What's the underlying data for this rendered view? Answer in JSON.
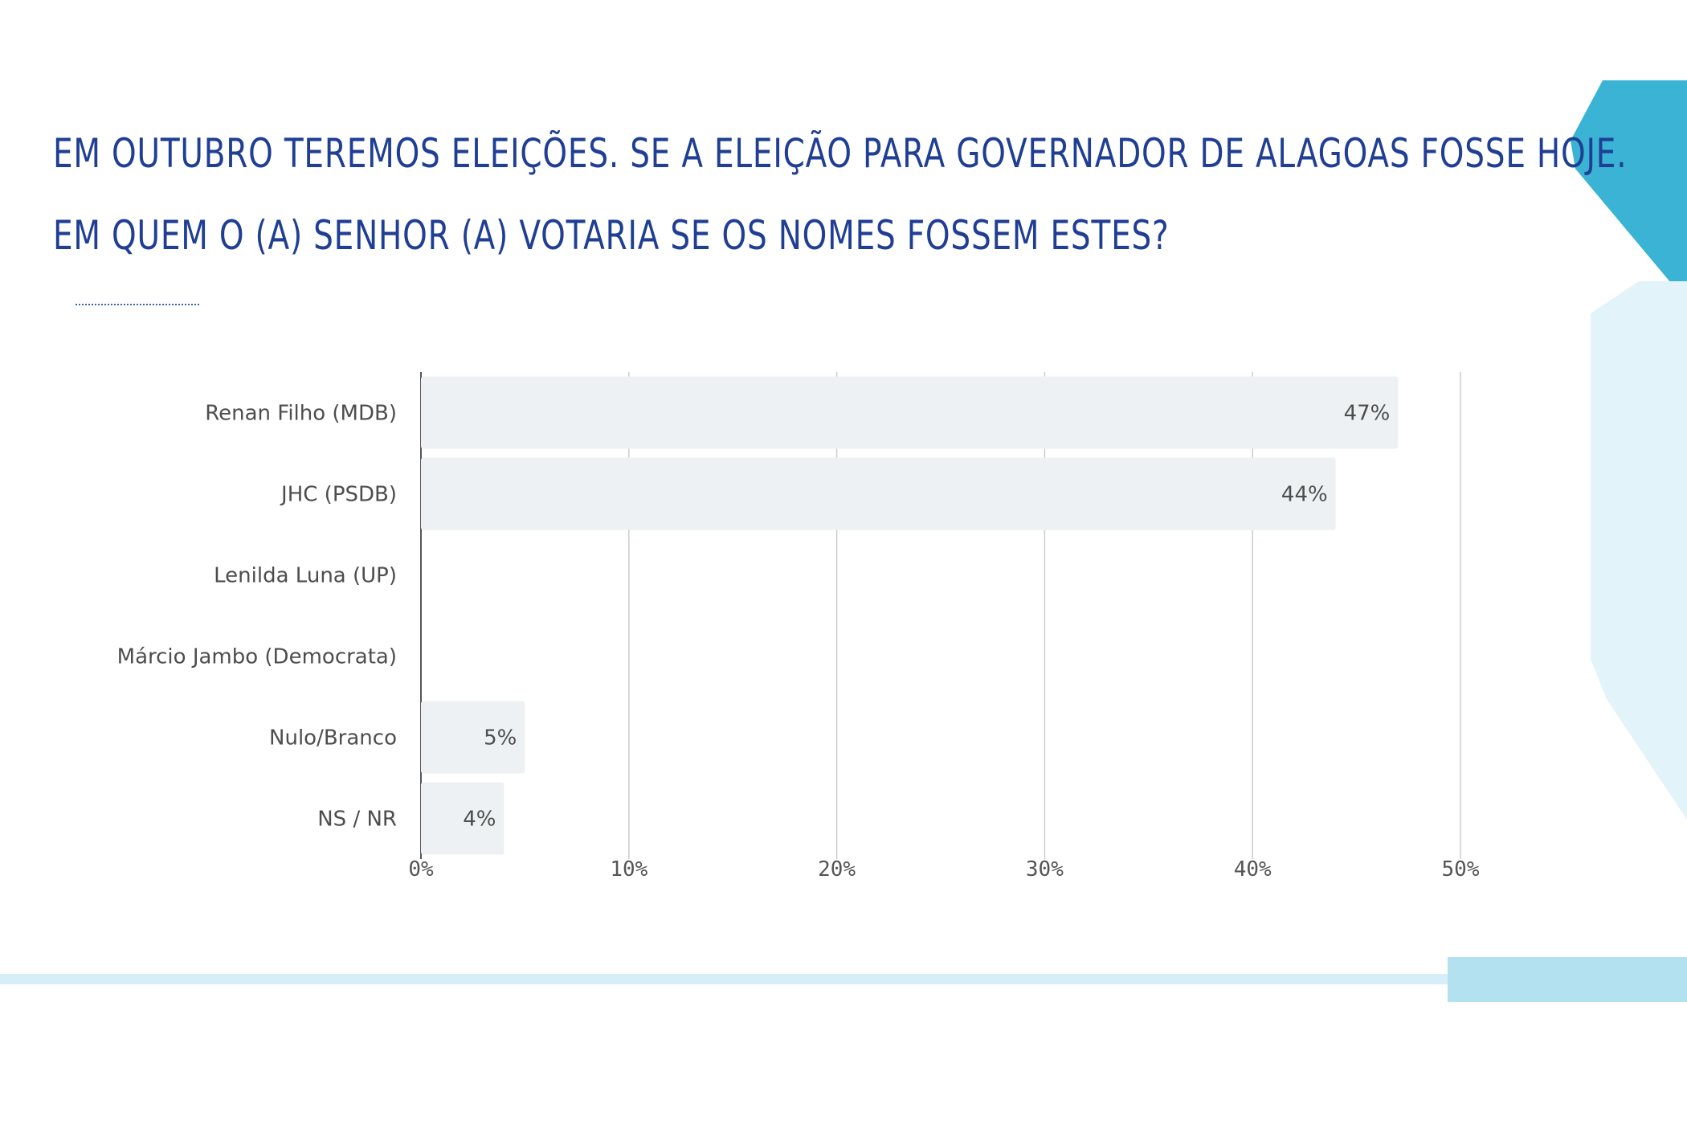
{
  "title_lines": [
    "EM OUTUBRO TEREMOS ELEIÇÕES. SE A ELEIÇÃO PARA GOVERNADOR DE ALAGOAS FOSSE HOJE.",
    "EM QUEM O (A) SENHOR (A) VOTARIA SE OS NOMES FOSSEM ESTES?"
  ],
  "colors": {
    "title": "#1f3e94",
    "bar": "#eef1f3",
    "grid": "#cccccc",
    "accent_teal": "#3ab3d4",
    "accent_light": "#e2f3f9"
  },
  "chart_data": {
    "type": "bar",
    "orientation": "horizontal",
    "categories": [
      "Renan Filho (MDB)",
      "JHC (PSDB)",
      "Lenilda Luna (UP)",
      "Márcio Jambo (Democrata)",
      "Nulo/Branco",
      "NS / NR"
    ],
    "values": [
      47,
      44,
      0,
      0,
      5,
      4
    ],
    "value_labels": [
      "47%",
      "44%",
      "",
      "",
      "5%",
      "4%"
    ],
    "xlim": [
      0,
      50
    ],
    "x_ticks": [
      "0%",
      "10%",
      "20%",
      "30%",
      "40%",
      "50%"
    ],
    "grid": true
  }
}
